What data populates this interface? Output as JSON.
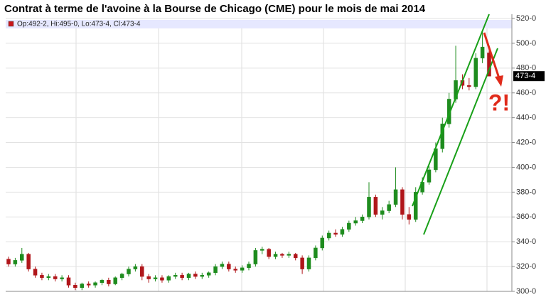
{
  "chart_data": {
    "type": "candlestick",
    "title": "Contrat à terme de l'avoine à la Bourse de Chicago (CME) pour le mois de mai 2014",
    "legend_text": "Op:492-2, Hi:495-0, Lo:473-4, Cl:473-4",
    "annotation": "?!",
    "up_color": "#1e8c1e",
    "down_color": "#b0161a",
    "ylim": [
      300,
      520
    ],
    "yticks": [
      {
        "value": 300,
        "label": "300-0"
      },
      {
        "value": 320,
        "label": "320-0"
      },
      {
        "value": 340,
        "label": "340-0"
      },
      {
        "value": 360,
        "label": "360-0"
      },
      {
        "value": 380,
        "label": "380-0"
      },
      {
        "value": 400,
        "label": "400-0"
      },
      {
        "value": 420,
        "label": "420-0"
      },
      {
        "value": 440,
        "label": "440-0"
      },
      {
        "value": 460,
        "label": "460-0"
      },
      {
        "value": 480,
        "label": "480-0"
      },
      {
        "value": 500,
        "label": "500-0"
      },
      {
        "value": 520,
        "label": "520-0"
      }
    ],
    "last_price": {
      "value": 473.5,
      "label": "473-4"
    },
    "grid": true,
    "open": [
      326,
      322,
      325,
      330,
      318,
      313,
      311,
      312,
      310,
      311,
      305,
      303,
      306,
      305,
      307,
      309,
      306,
      311,
      314,
      318,
      320,
      312,
      310,
      311,
      309,
      312,
      313,
      311,
      314,
      312,
      313,
      315,
      320,
      322,
      318,
      317,
      319,
      322,
      333,
      334,
      328,
      330,
      329,
      330,
      327,
      318,
      327,
      335,
      343,
      347,
      346,
      350,
      355,
      357,
      360,
      376,
      362,
      365,
      370,
      382,
      362,
      358,
      380,
      388,
      398,
      415,
      435,
      455,
      470,
      466,
      465,
      488,
      492.25
    ],
    "high": [
      328,
      327,
      335,
      331,
      320,
      315,
      314,
      314,
      313,
      313,
      307,
      307,
      308,
      308,
      310,
      311,
      312,
      315,
      320,
      322,
      322,
      314,
      313,
      313,
      313,
      315,
      315,
      315,
      316,
      315,
      316,
      322,
      324,
      324,
      320,
      321,
      324,
      335,
      336,
      335,
      332,
      331,
      332,
      331,
      329,
      329,
      337,
      345,
      349,
      350,
      352,
      357,
      360,
      362,
      388,
      378,
      368,
      373,
      400,
      384,
      368,
      384,
      392,
      401,
      420,
      440,
      460,
      498,
      475,
      472,
      492,
      510,
      495
    ],
    "low": [
      320,
      320,
      323,
      316,
      311,
      309,
      309,
      308,
      308,
      303,
      301,
      301,
      303,
      303,
      305,
      304,
      305,
      309,
      312,
      316,
      309,
      307,
      308,
      307,
      307,
      310,
      309,
      309,
      310,
      310,
      311,
      313,
      318,
      316,
      315,
      315,
      317,
      320,
      330,
      326,
      326,
      327,
      327,
      325,
      314,
      316,
      325,
      333,
      341,
      344,
      344,
      348,
      353,
      355,
      358,
      360,
      358,
      363,
      368,
      358,
      354,
      356,
      378,
      386,
      396,
      412,
      432,
      452,
      463,
      462,
      463,
      484,
      473.5
    ],
    "close": [
      322,
      325,
      330,
      318,
      313,
      311,
      312,
      310,
      311,
      305,
      303,
      306,
      305,
      307,
      309,
      306,
      311,
      314,
      318,
      320,
      312,
      310,
      311,
      309,
      312,
      313,
      311,
      314,
      312,
      313,
      315,
      320,
      322,
      318,
      317,
      319,
      322,
      333,
      334,
      328,
      330,
      329,
      330,
      327,
      318,
      327,
      335,
      343,
      347,
      346,
      350,
      355,
      357,
      360,
      376,
      362,
      365,
      370,
      382,
      362,
      358,
      380,
      388,
      398,
      415,
      435,
      455,
      470,
      466,
      465,
      488,
      497,
      473.5
    ]
  }
}
